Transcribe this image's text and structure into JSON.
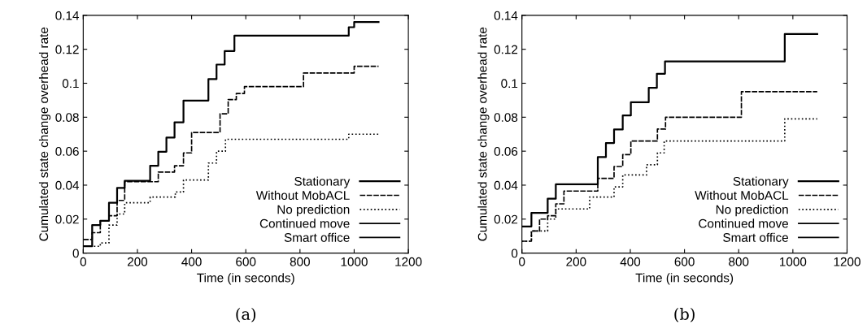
{
  "chart_data": [
    {
      "type": "step",
      "xlabel": "Time (in seconds)",
      "ylabel": "Cumulated state change overhead rate",
      "xlim": [
        0,
        1200
      ],
      "ylim": [
        0,
        0.14
      ],
      "xticks": [
        0,
        200,
        400,
        600,
        800,
        1000,
        1200
      ],
      "yticks": [
        0,
        0.02,
        0.04,
        0.06,
        0.08,
        0.1,
        0.12,
        0.14
      ],
      "grid": false,
      "legend": "bottom right",
      "annotations": [
        "(a)"
      ],
      "series": [
        {
          "name": "Stationary",
          "color": "#000000",
          "line_style": "solid",
          "x": [
            0,
            33,
            63,
            95,
            125,
            153,
            247,
            277,
            307,
            337,
            370,
            462,
            492,
            522,
            558,
            980,
            1000,
            1090
          ],
          "values": [
            0.004,
            0.0165,
            0.019,
            0.0296,
            0.0384,
            0.0426,
            0.0514,
            0.0597,
            0.068,
            0.077,
            0.0898,
            0.1024,
            0.111,
            0.119,
            0.128,
            0.133,
            0.136,
            0.136
          ]
        },
        {
          "name": "Without MobACL",
          "color": "#000000",
          "line_style": "dashed",
          "x": [
            0,
            33,
            63,
            95,
            125,
            153,
            277,
            337,
            370,
            400,
            505,
            535,
            565,
            595,
            813,
            1000,
            1090
          ],
          "values": [
            0.008,
            0.012,
            0.019,
            0.022,
            0.031,
            0.042,
            0.0477,
            0.0514,
            0.059,
            0.071,
            0.082,
            0.0904,
            0.094,
            0.098,
            0.106,
            0.11,
            0.11
          ]
        },
        {
          "name": "No prediction",
          "color": "#000000",
          "line_style": "dotted",
          "x": [
            0,
            63,
            95,
            125,
            153,
            247,
            340,
            370,
            462,
            492,
            525,
            980,
            1090
          ],
          "values": [
            0.004,
            0.006,
            0.0165,
            0.023,
            0.0296,
            0.033,
            0.036,
            0.043,
            0.053,
            0.06,
            0.067,
            0.07,
            0.07
          ]
        },
        {
          "name": "Continued move",
          "color": "#000000",
          "line_style": "solid"
        },
        {
          "name": "Smart office",
          "color": "#000000",
          "line_style": "solid"
        }
      ]
    },
    {
      "type": "step",
      "xlabel": "Time (in seconds)",
      "ylabel": "Cumulated state change overhead rate",
      "xlim": [
        0,
        1200
      ],
      "ylim": [
        0,
        0.14
      ],
      "xticks": [
        0,
        200,
        400,
        600,
        800,
        1000,
        1200
      ],
      "yticks": [
        0,
        0.02,
        0.04,
        0.06,
        0.08,
        0.1,
        0.12,
        0.14
      ],
      "grid": false,
      "legend": "bottom right",
      "annotations": [
        "(b)"
      ],
      "series": [
        {
          "name": "Stationary",
          "color": "#000000",
          "line_style": "solid",
          "x": [
            0,
            35,
            95,
            125,
            280,
            310,
            340,
            372,
            402,
            468,
            498,
            528,
            970,
            1090
          ],
          "values": [
            0.0157,
            0.0237,
            0.032,
            0.0405,
            0.0565,
            0.0648,
            0.0728,
            0.081,
            0.0888,
            0.0973,
            0.1056,
            0.1128,
            0.129,
            0.129
          ]
        },
        {
          "name": "Without MobACL",
          "color": "#000000",
          "line_style": "dashed",
          "x": [
            0,
            35,
            65,
            95,
            125,
            155,
            280,
            340,
            372,
            402,
            500,
            530,
            810,
            1090
          ],
          "values": [
            0.007,
            0.013,
            0.02,
            0.022,
            0.029,
            0.0365,
            0.044,
            0.051,
            0.058,
            0.066,
            0.073,
            0.08,
            0.095,
            0.095
          ]
        },
        {
          "name": "No prediction",
          "color": "#000000",
          "line_style": "dotted",
          "x": [
            0,
            35,
            95,
            125,
            250,
            340,
            372,
            460,
            500,
            525,
            970,
            1090
          ],
          "values": [
            0.007,
            0.013,
            0.02,
            0.026,
            0.033,
            0.039,
            0.046,
            0.052,
            0.059,
            0.066,
            0.079,
            0.079
          ]
        },
        {
          "name": "Continued move",
          "color": "#000000",
          "line_style": "solid"
        },
        {
          "name": "Smart office",
          "color": "#000000",
          "line_style": "solid"
        }
      ]
    }
  ]
}
